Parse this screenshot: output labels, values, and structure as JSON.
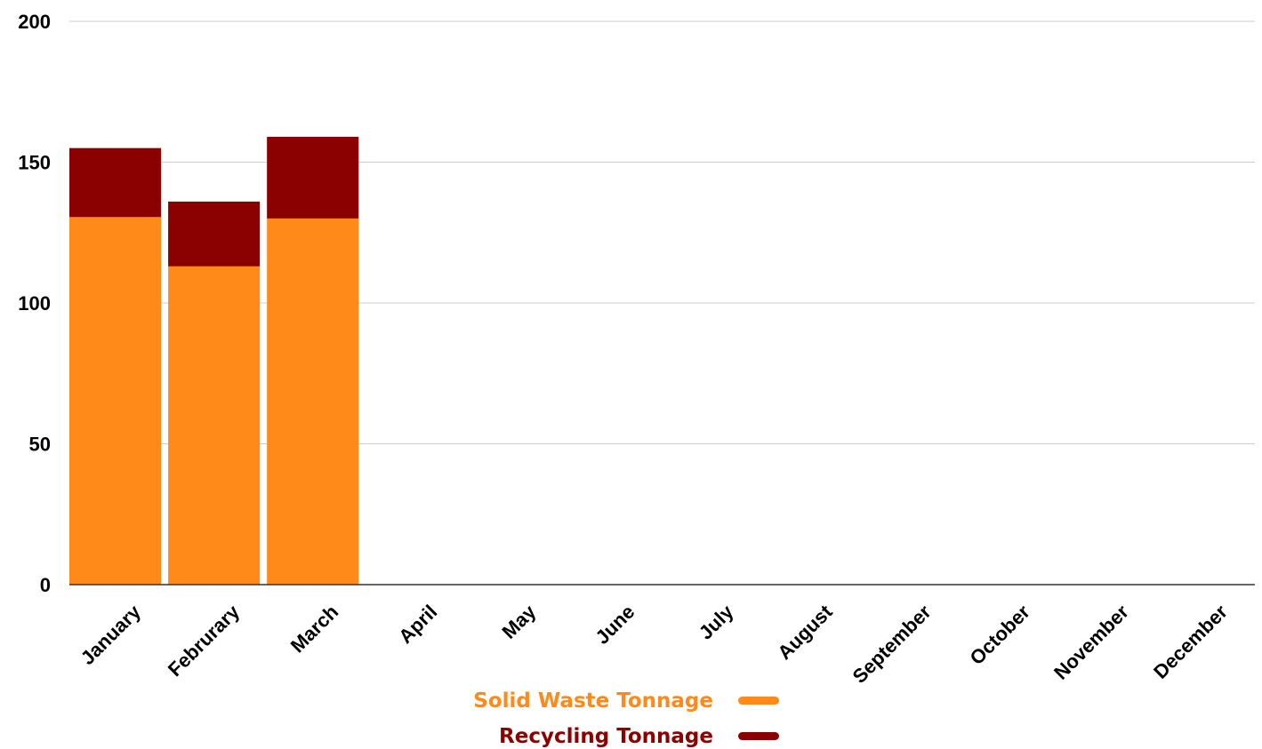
{
  "chart_data": {
    "type": "bar",
    "stacked": true,
    "categories": [
      "January",
      "Februrary",
      "March",
      "April",
      "May",
      "June",
      "July",
      "August",
      "September",
      "October",
      "November",
      "December"
    ],
    "series": [
      {
        "name": "Solid Waste Tonnage",
        "color": "#ff8a1a",
        "values": [
          130.5,
          113,
          130,
          0,
          0,
          0,
          0,
          0,
          0,
          0,
          0,
          0
        ]
      },
      {
        "name": "Recycling Tonnage",
        "color": "#8b0000",
        "values": [
          24.5,
          23,
          29,
          0,
          0,
          0,
          0,
          0,
          0,
          0,
          0,
          0
        ]
      }
    ],
    "y_ticks": [
      "0",
      "50",
      "100",
      "150",
      "200"
    ],
    "ylim": [
      0,
      200
    ],
    "grid": true,
    "legend_position": "bottom-center"
  }
}
